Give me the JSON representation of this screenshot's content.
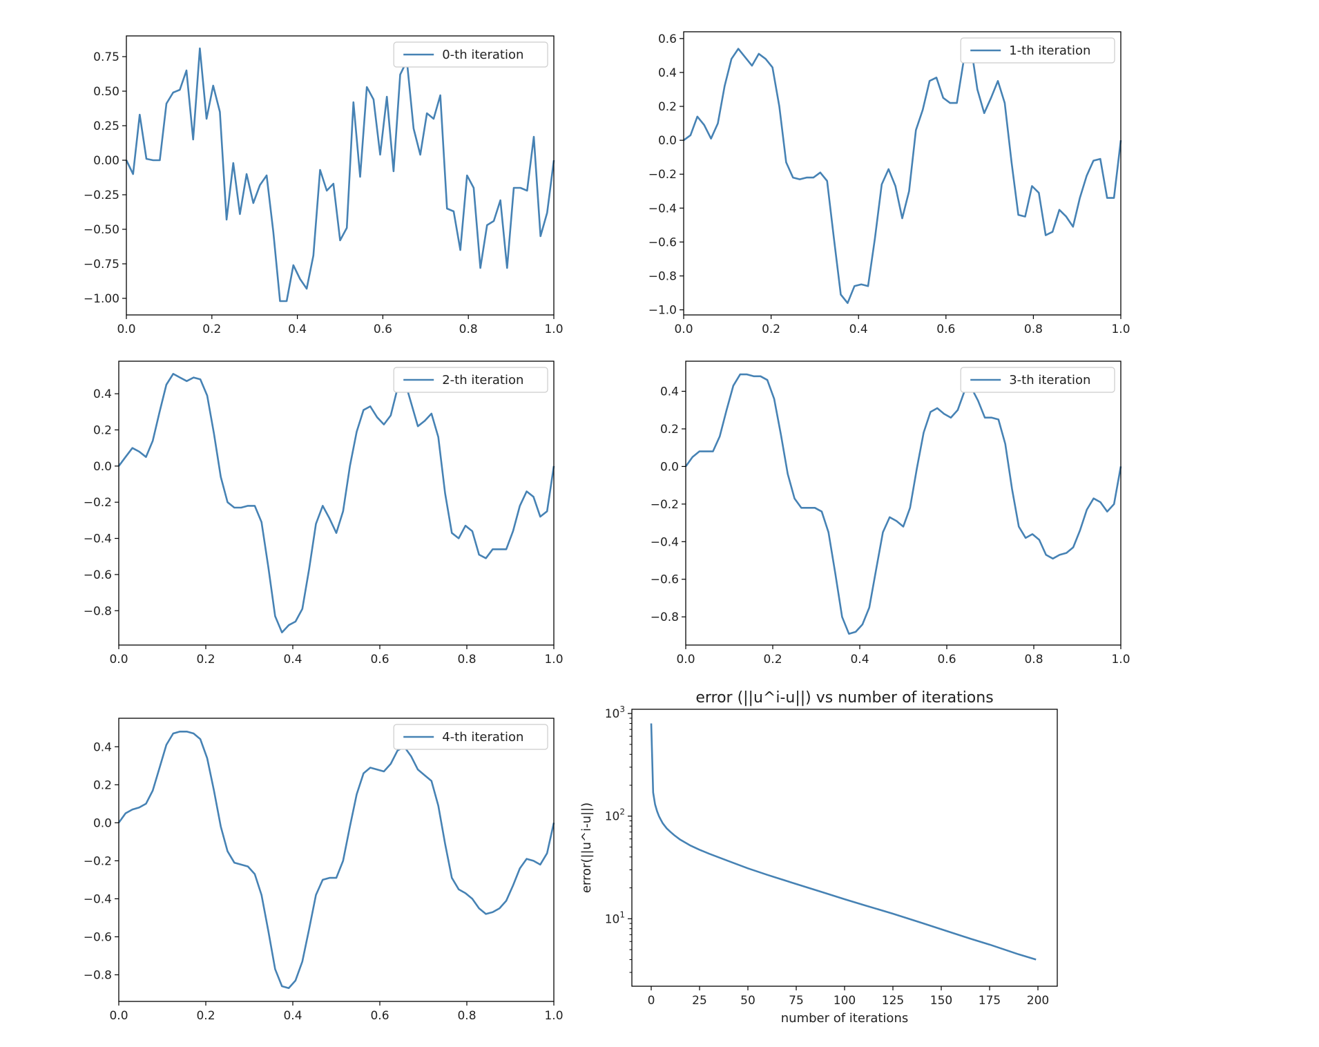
{
  "colors": {
    "series": "#4682b4",
    "axes": "#000000",
    "text": "#222222",
    "legend_border": "#cccccc"
  },
  "chart_data": [
    {
      "type": "line",
      "legend": {
        "entries": [
          "0-th iteration"
        ],
        "position": "upper-right"
      },
      "xlim": [
        0,
        1
      ],
      "ylim": [
        -1.12,
        0.9
      ],
      "xticks": [
        0,
        0.2,
        0.4,
        0.6,
        0.8,
        1.0
      ],
      "xtick_labels": [
        "0.0",
        "0.2",
        "0.4",
        "0.6",
        "0.8",
        "1.0"
      ],
      "yticks": [
        -1.0,
        -0.75,
        -0.5,
        -0.25,
        0.0,
        0.25,
        0.5,
        0.75
      ],
      "ytick_labels": [
        "−1.00",
        "−0.75",
        "−0.50",
        "−0.25",
        "0.00",
        "0.25",
        "0.50",
        "0.75"
      ],
      "grid": false,
      "series": [
        {
          "name": "0-th iteration",
          "y": [
            0.0,
            -0.1,
            0.33,
            0.01,
            0.0,
            0.0,
            0.41,
            0.49,
            0.51,
            0.65,
            0.15,
            0.81,
            0.3,
            0.54,
            0.35,
            -0.43,
            -0.02,
            -0.39,
            -0.1,
            -0.31,
            -0.18,
            -0.11,
            -0.52,
            -1.02,
            -1.02,
            -0.76,
            -0.86,
            -0.93,
            -0.69,
            -0.07,
            -0.22,
            -0.17,
            -0.58,
            -0.49,
            0.42,
            -0.12,
            0.53,
            0.44,
            0.04,
            0.46,
            -0.08,
            0.62,
            0.72,
            0.23,
            0.04,
            0.34,
            0.3,
            0.47,
            -0.35,
            -0.37,
            -0.65,
            -0.11,
            -0.2,
            -0.78,
            -0.47,
            -0.44,
            -0.29,
            -0.78,
            -0.2,
            -0.2,
            -0.22,
            0.17,
            -0.55,
            -0.38,
            0.0
          ]
        }
      ]
    },
    {
      "type": "line",
      "legend": {
        "entries": [
          "1-th iteration"
        ],
        "position": "upper-right"
      },
      "xlim": [
        0,
        1
      ],
      "ylim": [
        -1.03,
        0.64
      ],
      "xticks": [
        0,
        0.2,
        0.4,
        0.6,
        0.8,
        1.0
      ],
      "xtick_labels": [
        "0.0",
        "0.2",
        "0.4",
        "0.6",
        "0.8",
        "1.0"
      ],
      "yticks": [
        -1.0,
        -0.8,
        -0.6,
        -0.4,
        -0.2,
        0.0,
        0.2,
        0.4,
        0.6
      ],
      "ytick_labels": [
        "−1.0",
        "−0.8",
        "−0.6",
        "−0.4",
        "−0.2",
        "0.0",
        "0.2",
        "0.4",
        "0.6"
      ],
      "grid": false,
      "series": [
        {
          "name": "1-th iteration",
          "y": [
            0.0,
            0.03,
            0.14,
            0.09,
            0.01,
            0.1,
            0.32,
            0.48,
            0.54,
            0.49,
            0.44,
            0.51,
            0.48,
            0.43,
            0.2,
            -0.13,
            -0.22,
            -0.23,
            -0.22,
            -0.22,
            -0.19,
            -0.24,
            -0.58,
            -0.91,
            -0.96,
            -0.86,
            -0.85,
            -0.86,
            -0.58,
            -0.26,
            -0.17,
            -0.27,
            -0.46,
            -0.3,
            0.06,
            0.18,
            0.35,
            0.37,
            0.25,
            0.22,
            0.22,
            0.47,
            0.57,
            0.3,
            0.16,
            0.25,
            0.35,
            0.22,
            -0.13,
            -0.44,
            -0.45,
            -0.27,
            -0.31,
            -0.56,
            -0.54,
            -0.41,
            -0.45,
            -0.51,
            -0.34,
            -0.21,
            -0.12,
            -0.11,
            -0.34,
            -0.34,
            0.0
          ]
        }
      ]
    },
    {
      "type": "line",
      "legend": {
        "entries": [
          "2-th iteration"
        ],
        "position": "upper-right"
      },
      "xlim": [
        0,
        1
      ],
      "ylim": [
        -0.99,
        0.58
      ],
      "xticks": [
        0,
        0.2,
        0.4,
        0.6,
        0.8,
        1.0
      ],
      "xtick_labels": [
        "0.0",
        "0.2",
        "0.4",
        "0.6",
        "0.8",
        "1.0"
      ],
      "yticks": [
        -0.8,
        -0.6,
        -0.4,
        -0.2,
        0.0,
        0.2,
        0.4
      ],
      "ytick_labels": [
        "−0.8",
        "−0.6",
        "−0.4",
        "−0.2",
        "0.0",
        "0.2",
        "0.4"
      ],
      "grid": false,
      "series": [
        {
          "name": "2-th iteration",
          "y": [
            0.0,
            0.05,
            0.1,
            0.08,
            0.05,
            0.14,
            0.3,
            0.45,
            0.51,
            0.49,
            0.47,
            0.49,
            0.48,
            0.39,
            0.18,
            -0.06,
            -0.2,
            -0.23,
            -0.23,
            -0.22,
            -0.22,
            -0.31,
            -0.56,
            -0.83,
            -0.92,
            -0.88,
            -0.86,
            -0.79,
            -0.57,
            -0.32,
            -0.22,
            -0.29,
            -0.37,
            -0.25,
            0.0,
            0.19,
            0.31,
            0.33,
            0.27,
            0.23,
            0.28,
            0.43,
            0.48,
            0.35,
            0.22,
            0.25,
            0.29,
            0.16,
            -0.15,
            -0.37,
            -0.4,
            -0.33,
            -0.36,
            -0.49,
            -0.51,
            -0.46,
            -0.46,
            -0.46,
            -0.36,
            -0.22,
            -0.14,
            -0.17,
            -0.28,
            -0.25,
            0.0
          ]
        }
      ]
    },
    {
      "type": "line",
      "legend": {
        "entries": [
          "3-th iteration"
        ],
        "position": "upper-right"
      },
      "xlim": [
        0,
        1
      ],
      "ylim": [
        -0.95,
        0.56
      ],
      "xticks": [
        0,
        0.2,
        0.4,
        0.6,
        0.8,
        1.0
      ],
      "xtick_labels": [
        "0.0",
        "0.2",
        "0.4",
        "0.6",
        "0.8",
        "1.0"
      ],
      "yticks": [
        -0.8,
        -0.6,
        -0.4,
        -0.2,
        0.0,
        0.2,
        0.4
      ],
      "ytick_labels": [
        "−0.8",
        "−0.6",
        "−0.4",
        "−0.2",
        "0.0",
        "0.2",
        "0.4"
      ],
      "grid": false,
      "series": [
        {
          "name": "3-th iteration",
          "y": [
            0.0,
            0.05,
            0.08,
            0.08,
            0.08,
            0.16,
            0.3,
            0.43,
            0.49,
            0.49,
            0.48,
            0.48,
            0.46,
            0.36,
            0.17,
            -0.04,
            -0.17,
            -0.22,
            -0.22,
            -0.22,
            -0.24,
            -0.35,
            -0.57,
            -0.8,
            -0.89,
            -0.88,
            -0.84,
            -0.75,
            -0.55,
            -0.35,
            -0.27,
            -0.29,
            -0.32,
            -0.22,
            -0.01,
            0.18,
            0.29,
            0.31,
            0.28,
            0.26,
            0.3,
            0.4,
            0.42,
            0.35,
            0.26,
            0.26,
            0.25,
            0.12,
            -0.12,
            -0.32,
            -0.38,
            -0.36,
            -0.39,
            -0.47,
            -0.49,
            -0.47,
            -0.46,
            -0.43,
            -0.34,
            -0.23,
            -0.17,
            -0.19,
            -0.24,
            -0.2,
            0.0
          ]
        }
      ]
    },
    {
      "type": "line",
      "legend": {
        "entries": [
          "4-th iteration"
        ],
        "position": "upper-right"
      },
      "xlim": [
        0,
        1
      ],
      "ylim": [
        -0.94,
        0.55
      ],
      "xticks": [
        0,
        0.2,
        0.4,
        0.6,
        0.8,
        1.0
      ],
      "xtick_labels": [
        "0.0",
        "0.2",
        "0.4",
        "0.6",
        "0.8",
        "1.0"
      ],
      "yticks": [
        -0.8,
        -0.6,
        -0.4,
        -0.2,
        0.0,
        0.2,
        0.4
      ],
      "ytick_labels": [
        "−0.8",
        "−0.6",
        "−0.4",
        "−0.2",
        "0.0",
        "0.2",
        "0.4"
      ],
      "grid": false,
      "series": [
        {
          "name": "4-th iteration",
          "y": [
            0.0,
            0.05,
            0.07,
            0.08,
            0.1,
            0.17,
            0.29,
            0.41,
            0.47,
            0.48,
            0.48,
            0.47,
            0.44,
            0.34,
            0.17,
            -0.02,
            -0.15,
            -0.21,
            -0.22,
            -0.23,
            -0.27,
            -0.38,
            -0.57,
            -0.77,
            -0.86,
            -0.87,
            -0.83,
            -0.73,
            -0.56,
            -0.38,
            -0.3,
            -0.29,
            -0.29,
            -0.2,
            -0.02,
            0.15,
            0.26,
            0.29,
            0.28,
            0.27,
            0.31,
            0.38,
            0.4,
            0.35,
            0.28,
            0.25,
            0.22,
            0.09,
            -0.11,
            -0.29,
            -0.35,
            -0.37,
            -0.4,
            -0.45,
            -0.48,
            -0.47,
            -0.45,
            -0.41,
            -0.33,
            -0.24,
            -0.19,
            -0.2,
            -0.22,
            -0.16,
            0.0
          ]
        }
      ]
    },
    {
      "type": "line",
      "title": "error (||u^i-u||) vs number of iterations",
      "xlabel": "number of iterations",
      "ylabel": "error(||u^i-u||)",
      "yscale": "log",
      "xlim": [
        -10,
        210
      ],
      "ylim": [
        2.2,
        1100
      ],
      "xticks": [
        0,
        25,
        50,
        75,
        100,
        125,
        150,
        175,
        200
      ],
      "xtick_labels": [
        "0",
        "25",
        "50",
        "75",
        "100",
        "125",
        "150",
        "175",
        "200"
      ],
      "yticks": [
        10,
        100,
        1000
      ],
      "ytick_base": "10",
      "ytick_exponents": [
        "1",
        "2",
        "3"
      ],
      "grid": false,
      "series": [
        {
          "x": [
            0,
            1,
            2,
            3,
            4,
            5,
            6,
            8,
            10,
            12,
            15,
            20,
            25,
            30,
            40,
            50,
            60,
            75,
            90,
            100,
            110,
            125,
            140,
            150,
            165,
            175,
            190,
            199
          ],
          "y": [
            800,
            170,
            130,
            112,
            100,
            92,
            85,
            76,
            70,
            65,
            59,
            52,
            47,
            43,
            36.5,
            31,
            26.8,
            21.8,
            17.8,
            15.5,
            13.6,
            11.2,
            9.1,
            7.9,
            6.4,
            5.6,
            4.5,
            4.0
          ]
        }
      ]
    }
  ]
}
